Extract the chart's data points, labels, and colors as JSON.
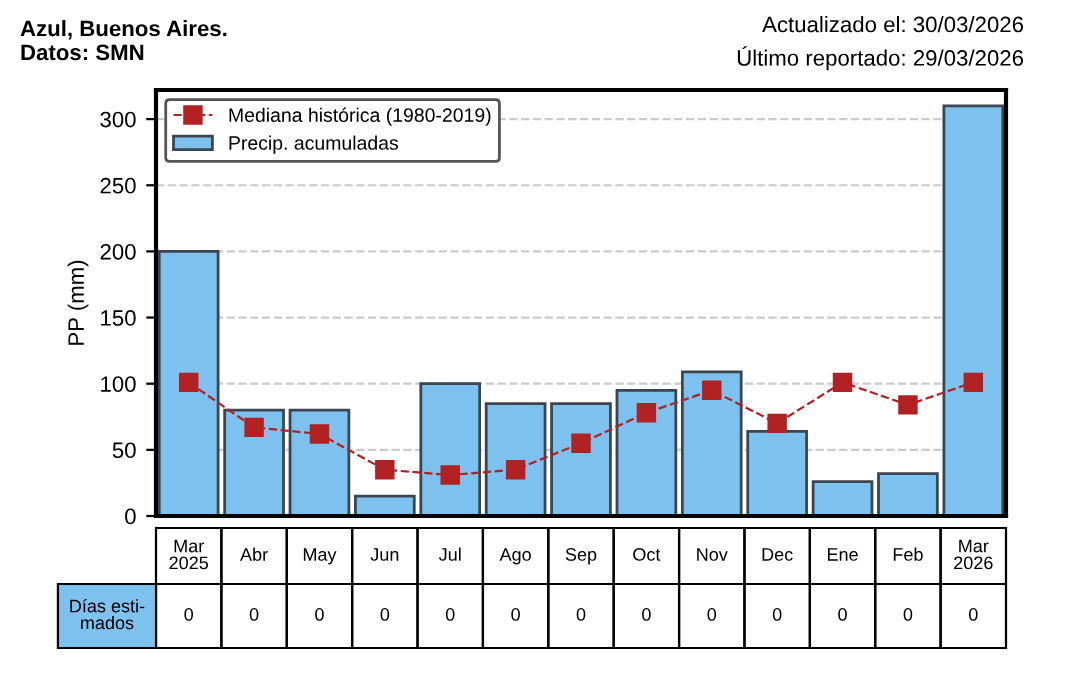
{
  "chart_data": {
    "type": "bar",
    "title": "Azul, Buenos Aires.\nDatos: SMN",
    "subtitle": "Actualizado el: 30/03/2026\nÚltimo reportado: 29/03/2026",
    "ylabel": "PP (mm)",
    "categories": [
      "Mar\n2025",
      "Abr",
      "May",
      "Jun",
      "Jul",
      "Ago",
      "Sep",
      "Oct",
      "Nov",
      "Dec",
      "Ene",
      "Feb",
      "Mar\n2026"
    ],
    "series": [
      {
        "name": "Mediana histórica (1980-2019)",
        "type": "line",
        "color": "#b22222",
        "marker": "square",
        "line_style": "dashed",
        "values": [
          101,
          67,
          62,
          35,
          31,
          35,
          55,
          78,
          95,
          70,
          101,
          84,
          101
        ]
      },
      {
        "name": "Precip. acumuladas",
        "color": "#7dc1ee",
        "values": [
          200,
          80,
          80,
          15,
          100,
          85,
          85,
          95,
          109,
          64,
          26,
          32,
          310
        ]
      }
    ],
    "ylim": [
      0,
      322
    ],
    "yticks": [
      0,
      50,
      100,
      150,
      200,
      250,
      300
    ],
    "grid": "y",
    "legend": "top left",
    "annotations": [
      "Días esti-\nmados",
      "0",
      "0",
      "0",
      "0",
      "0",
      "0",
      "0",
      "0",
      "0",
      "0",
      "0",
      "0",
      "0"
    ]
  }
}
